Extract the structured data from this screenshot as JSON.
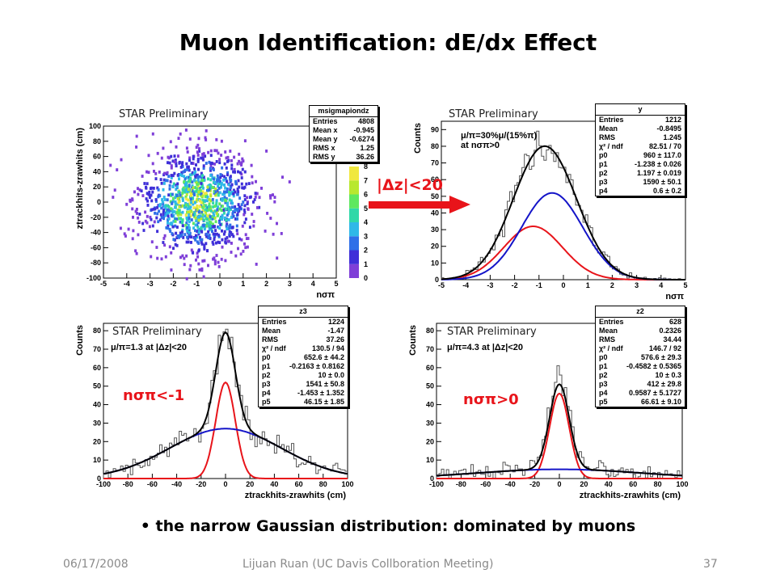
{
  "slide": {
    "title": "Muon Identification: dE/dx Effect",
    "bullet": "the narrow Gaussian distribution: dominated by muons",
    "footer": {
      "date": "06/17/2008",
      "author": "Lijuan Ruan (UC Davis Collboration Meeting)",
      "page": "37"
    }
  },
  "colors": {
    "red": "#e8141a",
    "blue": "#1414c8",
    "black": "#000000",
    "hist": "#555555"
  },
  "annotations": {
    "dz_cut": "|Δz|<20",
    "ns_low": "nσπ<-1",
    "ns_high": "nσπ>0"
  },
  "chart_data": [
    {
      "id": "scatter_2d",
      "type": "heatmap",
      "watermark": "STAR Preliminary",
      "xlabel": "nσπ",
      "ylabel": "ztrackhits-zrawhits (cm)",
      "xlim": [
        -5,
        5
      ],
      "ylim": [
        -100,
        100
      ],
      "xticks": [
        "-5",
        "-4",
        "-3",
        "-2",
        "-1",
        "0",
        "1",
        "2",
        "3",
        "4",
        "5"
      ],
      "yticks": [
        "-100",
        "-80",
        "-60",
        "-40",
        "-20",
        "0",
        "20",
        "40",
        "60",
        "80",
        "100"
      ],
      "colorbar": {
        "range": [
          0,
          8
        ],
        "ticks": [
          "0",
          "1",
          "2",
          "3",
          "4",
          "5",
          "6",
          "7",
          "8"
        ]
      },
      "stats": {
        "title": "msigmapiondz",
        "rows": [
          [
            "Entries",
            "4808"
          ],
          [
            "Mean x",
            "-0.945"
          ],
          [
            "Mean y",
            "-0.6274"
          ],
          [
            "RMS x",
            "1.25"
          ],
          [
            "RMS y",
            "36.26"
          ]
        ]
      }
    },
    {
      "id": "nsigma_fit",
      "type": "line",
      "watermark": "STAR Preliminary",
      "xlabel": "nσπ",
      "ylabel": "Counts",
      "xlim": [
        -5,
        5
      ],
      "ylim": [
        0,
        95
      ],
      "xticks": [
        "-5",
        "-4",
        "-3",
        "-2",
        "-1",
        "0",
        "1",
        "2",
        "3",
        "4",
        "5"
      ],
      "yticks": [
        "0",
        "10",
        "20",
        "30",
        "40",
        "50",
        "60",
        "70",
        "80",
        "90"
      ],
      "note_lines": [
        "μ/π=30%μ/(15%π)",
        "at nσπ>0"
      ],
      "gaussians": [
        {
          "name": "red",
          "amp": 32,
          "mean": -1.24,
          "sigma": 1.2
        },
        {
          "name": "blue",
          "amp": 52,
          "mean": -0.46,
          "sigma": 1.25
        }
      ],
      "stats": {
        "title": "y",
        "rows": [
          [
            "Entries",
            "1212"
          ],
          [
            "Mean",
            "-0.8495"
          ],
          [
            "RMS",
            "1.245"
          ],
          [
            "χ² / ndf",
            "82.51 / 70"
          ],
          [
            "p0",
            "960 ± 117.0"
          ],
          [
            "p1",
            "-1.238 ± 0.026"
          ],
          [
            "p2",
            "1.197 ± 0.019"
          ],
          [
            "p3",
            "1590 ± 50.1"
          ],
          [
            "p4",
            "0.6 ± 0.2"
          ]
        ]
      }
    },
    {
      "id": "dz_low",
      "type": "line",
      "watermark": "STAR Preliminary",
      "xlabel": "ztrackhits-zrawhits (cm)",
      "ylabel": "Counts",
      "xlim": [
        -100,
        100
      ],
      "ylim": [
        0,
        84
      ],
      "xticks": [
        "-100",
        "-80",
        "-60",
        "-40",
        "-20",
        "0",
        "20",
        "40",
        "60",
        "80",
        "100"
      ],
      "yticks": [
        "0",
        "10",
        "20",
        "30",
        "40",
        "50",
        "60",
        "70",
        "80"
      ],
      "note_lines": [
        "μ/π=1.3 at |Δz|<20"
      ],
      "gaussians": [
        {
          "name": "red",
          "amp": 52,
          "mean": 0,
          "sigma": 8
        },
        {
          "name": "blue",
          "amp": 27,
          "mean": 0,
          "sigma": 46
        }
      ],
      "stats": {
        "title": "z3",
        "rows": [
          [
            "Entries",
            "1224"
          ],
          [
            "Mean",
            "-1.47"
          ],
          [
            "RMS",
            "37.26"
          ],
          [
            "χ² / ndf",
            "130.5 / 94"
          ],
          [
            "p0",
            "652.6 ± 44.2"
          ],
          [
            "p1",
            "-0.2163 ± 0.8162"
          ],
          [
            "p2",
            "10 ± 0.0"
          ],
          [
            "p3",
            "1541 ± 50.8"
          ],
          [
            "p4",
            "-1.453 ± 1.352"
          ],
          [
            "p5",
            "46.15 ± 1.85"
          ]
        ]
      }
    },
    {
      "id": "dz_high",
      "type": "line",
      "watermark": "STAR Preliminary",
      "xlabel": "ztrackhits-zrawhits (cm)",
      "ylabel": "Counts",
      "xlim": [
        -100,
        100
      ],
      "ylim": [
        0,
        84
      ],
      "xticks": [
        "-100",
        "-80",
        "-60",
        "-40",
        "-20",
        "0",
        "20",
        "40",
        "60",
        "80",
        "100"
      ],
      "yticks": [
        "0",
        "10",
        "20",
        "30",
        "40",
        "50",
        "60",
        "70",
        "80"
      ],
      "note_lines": [
        "μ/π=4.3 at |Δz|<20"
      ],
      "gaussians": [
        {
          "name": "red",
          "amp": 46,
          "mean": 0,
          "sigma": 8
        },
        {
          "name": "blue",
          "amp": 5,
          "mean": 0,
          "sigma": 66
        }
      ],
      "stats": {
        "title": "z2",
        "rows": [
          [
            "Entries",
            "628"
          ],
          [
            "Mean",
            "0.2326"
          ],
          [
            "RMS",
            "34.44"
          ],
          [
            "χ² / ndf",
            "146.7 / 92"
          ],
          [
            "p0",
            "576.6 ± 29.3"
          ],
          [
            "p1",
            "-0.4582 ± 0.5365"
          ],
          [
            "p2",
            "10 ± 0.3"
          ],
          [
            "p3",
            "412 ± 29.8"
          ],
          [
            "p4",
            "0.9587 ± 5.1727"
          ],
          [
            "p5",
            "66.61 ± 9.10"
          ]
        ]
      }
    }
  ]
}
